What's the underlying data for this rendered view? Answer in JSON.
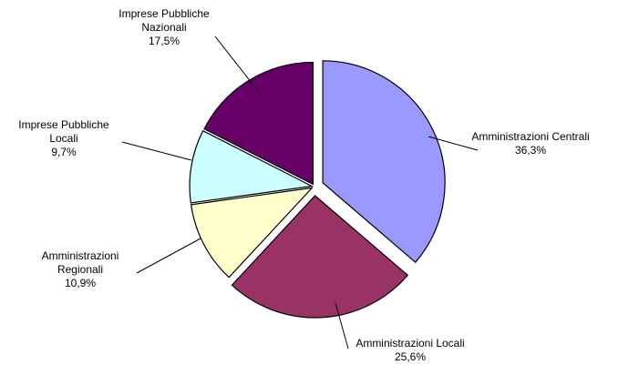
{
  "chart_data": {
    "type": "pie",
    "categories": [
      "Amministrazioni Centrali",
      "Amministrazioni Locali",
      "Amministrazioni Regionali",
      "Imprese Pubbliche Locali",
      "Imprese Pubbliche Nazionali"
    ],
    "values": [
      36.3,
      25.6,
      10.9,
      9.7,
      17.5
    ],
    "value_labels": [
      "36,3%",
      "25,6%",
      "10,9%",
      "9,7%",
      "17,5%"
    ],
    "colors": [
      "#9999ff",
      "#993366",
      "#ffffcc",
      "#ccffff",
      "#660066"
    ]
  }
}
